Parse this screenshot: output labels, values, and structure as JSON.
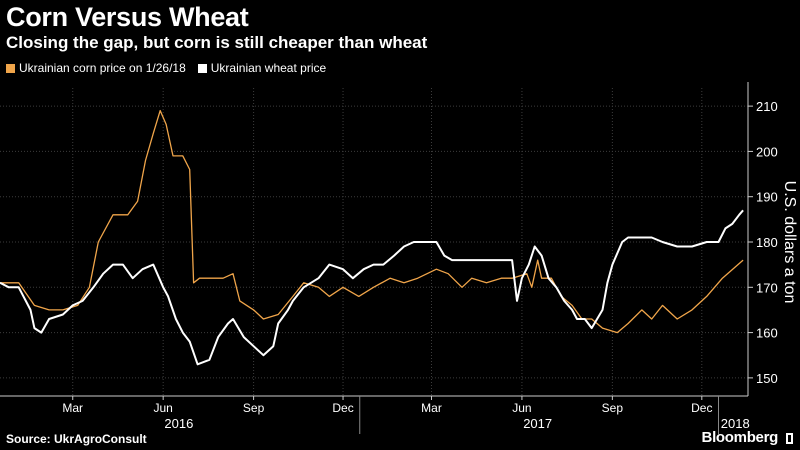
{
  "title": "Corn Versus Wheat",
  "subtitle": "Closing the gap, but corn is still cheaper than wheat",
  "source": "Source: UkrAgroConsult",
  "brand": "Bloomberg",
  "legend": [
    {
      "label": "Ukrainian corn price on 1/26/18",
      "color": "#f0a54a"
    },
    {
      "label": "Ukrainian wheat price",
      "color": "#ffffff"
    }
  ],
  "chart_data": {
    "type": "line",
    "title": "Corn Versus Wheat",
    "subtitle": "Closing the gap, but corn is still cheaper than wheat",
    "ylabel": "U.S. dollars a ton",
    "ylim": [
      146,
      214
    ],
    "y_ticks": [
      150,
      160,
      170,
      180,
      190,
      200,
      210
    ],
    "y_axis_side": "right",
    "grid": true,
    "legend_position": "top-left",
    "x_range": [
      "2016-01-01",
      "2018-01-31"
    ],
    "month_ticks": [
      {
        "label": "Mar",
        "date": "2016-03-15"
      },
      {
        "label": "Jun",
        "date": "2016-06-15"
      },
      {
        "label": "Sep",
        "date": "2016-09-15"
      },
      {
        "label": "Dec",
        "date": "2016-12-15"
      },
      {
        "label": "Mar",
        "date": "2017-03-15"
      },
      {
        "label": "Jun",
        "date": "2017-06-15"
      },
      {
        "label": "Sep",
        "date": "2017-09-15"
      },
      {
        "label": "Dec",
        "date": "2017-12-15"
      }
    ],
    "year_labels": [
      {
        "label": "2016",
        "date": "2016-07-01"
      },
      {
        "label": "2017",
        "date": "2017-07-01"
      },
      {
        "label": "2018",
        "date": "2018-01-18"
      }
    ],
    "year_dividers": [
      "2017-01-01",
      "2018-01-01"
    ],
    "series": [
      {
        "name": "Ukrainian corn price on 1/26/18",
        "color": "#f0a54a",
        "points": [
          [
            "2016-01-01",
            171
          ],
          [
            "2016-01-20",
            171
          ],
          [
            "2016-02-05",
            166
          ],
          [
            "2016-02-20",
            165
          ],
          [
            "2016-03-05",
            165
          ],
          [
            "2016-03-20",
            166
          ],
          [
            "2016-04-01",
            170
          ],
          [
            "2016-04-10",
            180
          ],
          [
            "2016-04-25",
            186
          ],
          [
            "2016-05-10",
            186
          ],
          [
            "2016-05-20",
            189
          ],
          [
            "2016-05-28",
            198
          ],
          [
            "2016-06-05",
            204
          ],
          [
            "2016-06-12",
            209
          ],
          [
            "2016-06-18",
            206
          ],
          [
            "2016-06-25",
            199
          ],
          [
            "2016-07-05",
            199
          ],
          [
            "2016-07-12",
            196
          ],
          [
            "2016-07-16",
            171
          ],
          [
            "2016-07-22",
            172
          ],
          [
            "2016-08-15",
            172
          ],
          [
            "2016-08-25",
            173
          ],
          [
            "2016-09-01",
            167
          ],
          [
            "2016-09-15",
            165
          ],
          [
            "2016-09-25",
            163
          ],
          [
            "2016-10-10",
            164
          ],
          [
            "2016-10-25",
            168
          ],
          [
            "2016-11-05",
            171
          ],
          [
            "2016-11-20",
            170
          ],
          [
            "2016-12-01",
            168
          ],
          [
            "2016-12-15",
            170
          ],
          [
            "2016-12-31",
            168
          ],
          [
            "2017-01-15",
            170
          ],
          [
            "2017-02-01",
            172
          ],
          [
            "2017-02-15",
            171
          ],
          [
            "2017-03-01",
            172
          ],
          [
            "2017-03-20",
            174
          ],
          [
            "2017-04-01",
            173
          ],
          [
            "2017-04-15",
            170
          ],
          [
            "2017-04-25",
            172
          ],
          [
            "2017-05-10",
            171
          ],
          [
            "2017-05-25",
            172
          ],
          [
            "2017-06-05",
            172
          ],
          [
            "2017-06-20",
            173
          ],
          [
            "2017-06-25",
            170
          ],
          [
            "2017-07-01",
            176
          ],
          [
            "2017-07-05",
            172
          ],
          [
            "2017-07-15",
            172
          ],
          [
            "2017-07-25",
            168
          ],
          [
            "2017-08-05",
            166
          ],
          [
            "2017-08-15",
            163
          ],
          [
            "2017-08-25",
            163
          ],
          [
            "2017-09-05",
            161
          ],
          [
            "2017-09-20",
            160
          ],
          [
            "2017-10-01",
            162
          ],
          [
            "2017-10-15",
            165
          ],
          [
            "2017-10-25",
            163
          ],
          [
            "2017-11-05",
            166
          ],
          [
            "2017-11-20",
            163
          ],
          [
            "2017-12-05",
            165
          ],
          [
            "2017-12-20",
            168
          ],
          [
            "2018-01-05",
            172
          ],
          [
            "2018-01-26",
            176
          ]
        ]
      },
      {
        "name": "Ukrainian wheat price",
        "color": "#ffffff",
        "points": [
          [
            "2016-01-01",
            171
          ],
          [
            "2016-01-10",
            170
          ],
          [
            "2016-01-20",
            170
          ],
          [
            "2016-02-01",
            165
          ],
          [
            "2016-02-05",
            161
          ],
          [
            "2016-02-12",
            160
          ],
          [
            "2016-02-20",
            163
          ],
          [
            "2016-03-05",
            164
          ],
          [
            "2016-03-15",
            166
          ],
          [
            "2016-03-25",
            167
          ],
          [
            "2016-04-05",
            170
          ],
          [
            "2016-04-15",
            173
          ],
          [
            "2016-04-25",
            175
          ],
          [
            "2016-05-05",
            175
          ],
          [
            "2016-05-15",
            172
          ],
          [
            "2016-05-25",
            174
          ],
          [
            "2016-06-05",
            175
          ],
          [
            "2016-06-15",
            170
          ],
          [
            "2016-06-20",
            168
          ],
          [
            "2016-06-28",
            163
          ],
          [
            "2016-07-05",
            160
          ],
          [
            "2016-07-12",
            158
          ],
          [
            "2016-07-20",
            153
          ],
          [
            "2016-08-01",
            154
          ],
          [
            "2016-08-10",
            159
          ],
          [
            "2016-08-20",
            162
          ],
          [
            "2016-08-25",
            163
          ],
          [
            "2016-09-05",
            159
          ],
          [
            "2016-09-15",
            157
          ],
          [
            "2016-09-25",
            155
          ],
          [
            "2016-10-05",
            157
          ],
          [
            "2016-10-10",
            162
          ],
          [
            "2016-10-20",
            165
          ],
          [
            "2016-10-25",
            167
          ],
          [
            "2016-11-05",
            170
          ],
          [
            "2016-11-20",
            172
          ],
          [
            "2016-12-01",
            175
          ],
          [
            "2016-12-15",
            174
          ],
          [
            "2016-12-25",
            172
          ],
          [
            "2017-01-05",
            174
          ],
          [
            "2017-01-15",
            175
          ],
          [
            "2017-01-25",
            175
          ],
          [
            "2017-02-05",
            177
          ],
          [
            "2017-02-15",
            179
          ],
          [
            "2017-02-25",
            180
          ],
          [
            "2017-03-10",
            180
          ],
          [
            "2017-03-20",
            180
          ],
          [
            "2017-03-28",
            177
          ],
          [
            "2017-04-05",
            176
          ],
          [
            "2017-04-25",
            176
          ],
          [
            "2017-05-15",
            176
          ],
          [
            "2017-06-05",
            176
          ],
          [
            "2017-06-10",
            167
          ],
          [
            "2017-06-15",
            172
          ],
          [
            "2017-06-22",
            175
          ],
          [
            "2017-06-28",
            179
          ],
          [
            "2017-07-05",
            177
          ],
          [
            "2017-07-12",
            172
          ],
          [
            "2017-07-20",
            170
          ],
          [
            "2017-07-28",
            167
          ],
          [
            "2017-08-05",
            165
          ],
          [
            "2017-08-10",
            163
          ],
          [
            "2017-08-18",
            163
          ],
          [
            "2017-08-25",
            161
          ],
          [
            "2017-09-05",
            165
          ],
          [
            "2017-09-10",
            171
          ],
          [
            "2017-09-15",
            175
          ],
          [
            "2017-09-25",
            180
          ],
          [
            "2017-10-01",
            181
          ],
          [
            "2017-10-15",
            181
          ],
          [
            "2017-10-25",
            181
          ],
          [
            "2017-11-05",
            180
          ],
          [
            "2017-11-20",
            179
          ],
          [
            "2017-12-05",
            179
          ],
          [
            "2017-12-20",
            180
          ],
          [
            "2018-01-01",
            180
          ],
          [
            "2018-01-08",
            183
          ],
          [
            "2018-01-15",
            184
          ],
          [
            "2018-01-22",
            186
          ],
          [
            "2018-01-26",
            187
          ]
        ]
      }
    ]
  }
}
